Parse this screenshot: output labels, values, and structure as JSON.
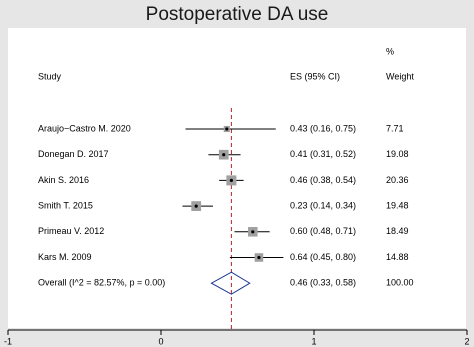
{
  "chart_data": {
    "type": "forest",
    "title": "Postoperative DA use",
    "column_headers": {
      "study": "Study",
      "es": "ES (95% CI)",
      "weight_unit": "%",
      "weight": "Weight"
    },
    "studies": [
      "Araujo−Castro M. 2020",
      "Donegan D. 2017",
      "Akin S. 2016",
      "Smith T. 2015",
      "Primeau V. 2012",
      "Kars M. 2009"
    ],
    "es": [
      0.43,
      0.41,
      0.46,
      0.23,
      0.6,
      0.64
    ],
    "lower": [
      0.16,
      0.31,
      0.38,
      0.14,
      0.48,
      0.45
    ],
    "upper": [
      0.75,
      0.52,
      0.54,
      0.34,
      0.71,
      0.8
    ],
    "ci_labels": [
      "0.43 (0.16, 0.75)",
      "0.41 (0.31, 0.52)",
      "0.46 (0.38, 0.54)",
      "0.23 (0.14, 0.34)",
      "0.60 (0.48, 0.71)",
      "0.64 (0.45, 0.80)"
    ],
    "weights": [
      7.71,
      19.08,
      20.36,
      19.48,
      18.49,
      14.88
    ],
    "overall": {
      "label": "Overall  (I^2 = 82.57%, p = 0.00)",
      "es": 0.46,
      "lower": 0.33,
      "upper": 0.58,
      "ci_label": "0.46 (0.33, 0.58)",
      "weight": {
        "value": 100,
        "label": "100.00"
      }
    },
    "xlim": [
      -1,
      2
    ],
    "xticks": [
      -1,
      0,
      1,
      2
    ],
    "colors": {
      "ci": "#000000",
      "box": "#a0a0a0",
      "reference": "#b22222",
      "diamond": "#1f3a93"
    }
  }
}
